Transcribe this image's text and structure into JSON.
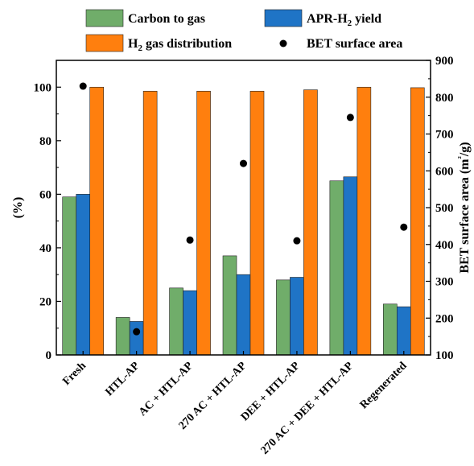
{
  "chart_data": {
    "type": "bar",
    "categories": [
      "Fresh",
      "HTL-AP",
      "AC + HTL-AP",
      "270 AC + HTL-AP",
      "DEE + HTL-AP",
      "270 AC + DEE + HTL-AP",
      "Regenerated"
    ],
    "series": [
      {
        "name": "Carbon to gas",
        "color": "#70ad6a",
        "values": [
          59,
          14,
          25,
          37,
          28,
          65,
          19
        ]
      },
      {
        "name": "APR-H2 yield",
        "color": "#1f74c6",
        "values": [
          60,
          12.5,
          24,
          30,
          29,
          66.5,
          18
        ]
      },
      {
        "name": "H2 gas distribution",
        "color": "#ff7f0e",
        "values": [
          100,
          98.5,
          98.5,
          98.5,
          99,
          100,
          99.8
        ]
      }
    ],
    "scatter_series": {
      "name": "BET surface area",
      "color": "#000000",
      "values": [
        830,
        163,
        412,
        620,
        410,
        745,
        447
      ]
    },
    "ylabel": "(%)",
    "y2label": "BET surface area (m²/g)",
    "ylim": [
      0,
      110
    ],
    "y2lim": [
      100,
      900
    ],
    "yticks": [
      "0",
      "20",
      "40",
      "60",
      "80",
      "100"
    ],
    "y2ticks": [
      "100",
      "200",
      "300",
      "400",
      "500",
      "600",
      "700",
      "800",
      "900"
    ],
    "legend": {
      "placement": "top",
      "items": [
        {
          "label": "Carbon to gas",
          "marker": "bar",
          "color": "#70ad6a"
        },
        {
          "label": "APR-H",
          "sub": "2",
          "suffix": " yield",
          "marker": "bar",
          "color": "#1f74c6"
        },
        {
          "label": "H",
          "sub": "2",
          "suffix": " gas distribution",
          "marker": "bar",
          "color": "#ff7f0e"
        },
        {
          "label": "BET surface area",
          "marker": "dot",
          "color": "#000000"
        }
      ]
    }
  }
}
